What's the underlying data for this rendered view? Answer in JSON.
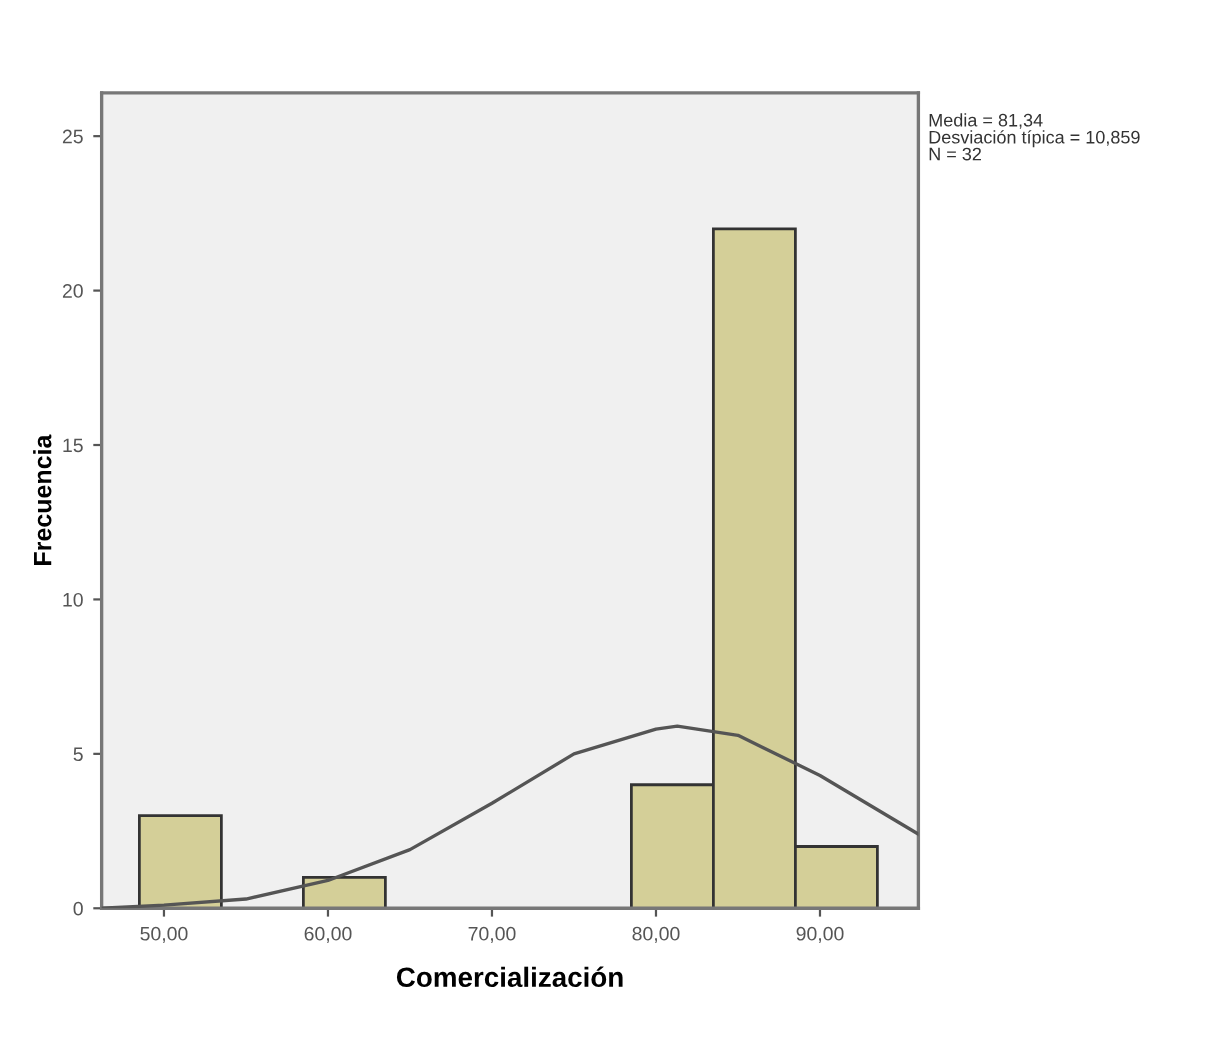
{
  "chart_data": {
    "type": "histogram",
    "xlabel": "Comercialización",
    "ylabel": "Frecuencia",
    "bins": [
      48.5,
      53.5,
      58.5,
      63.5,
      68.5,
      73.5,
      78.5,
      83.5,
      88.5,
      93.5
    ],
    "values": [
      3,
      0,
      1,
      0,
      0,
      0,
      4,
      22,
      2
    ],
    "color": "#d4cf98",
    "series": [
      {
        "type": "line",
        "color": "#555555",
        "x": [
          46.2,
          50,
          55,
          60,
          65,
          70,
          75,
          80,
          81.3,
          85,
          90,
          96
        ],
        "values": [
          0.0,
          0.1,
          0.3,
          0.9,
          1.9,
          3.4,
          5.0,
          5.8,
          5.9,
          5.6,
          4.3,
          2.4
        ]
      }
    ],
    "xlim": [
      46.2,
      96
    ],
    "xticks": [
      {
        "value": 50,
        "label": "50,00"
      },
      {
        "value": 60,
        "label": "60,00"
      },
      {
        "value": 70,
        "label": "70,00"
      },
      {
        "value": 80,
        "label": "80,00"
      },
      {
        "value": 90,
        "label": "90,00"
      }
    ],
    "ylim": [
      0,
      26.4
    ],
    "yticks": [
      0,
      5,
      10,
      15,
      20,
      25
    ],
    "grid": false,
    "legend": false,
    "marker": "none",
    "line_style": "solid",
    "annotations": [
      "Media = 81,34",
      "Desviación típica = 10,859",
      "N = 32"
    ]
  }
}
